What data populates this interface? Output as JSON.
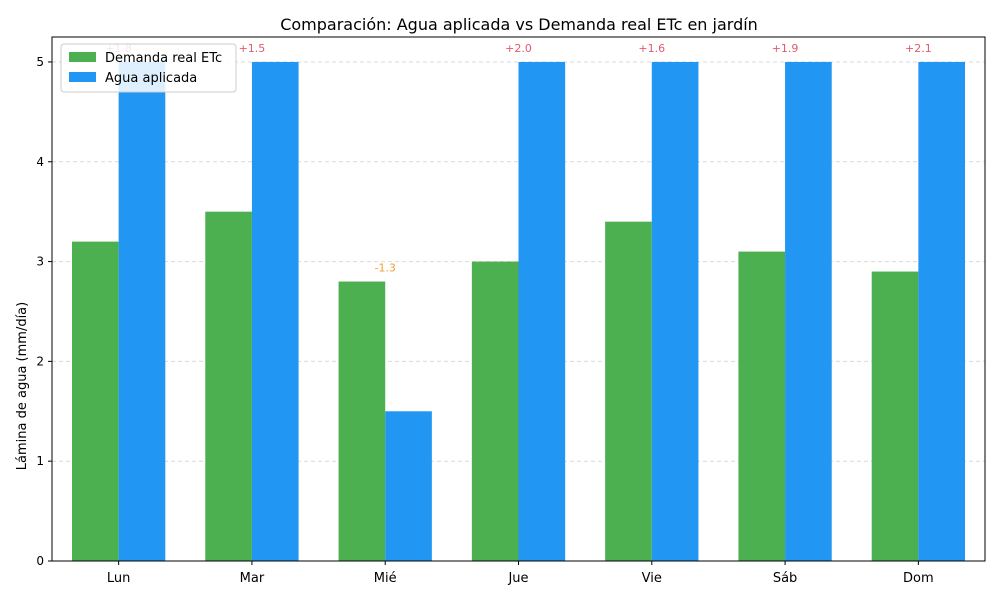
{
  "chart_data": {
    "type": "bar",
    "title": "Comparación: Agua aplicada vs Demanda real ETc en jardín",
    "xlabel": "",
    "ylabel": "Lámina de agua (mm/día)",
    "categories": [
      "Lun",
      "Mar",
      "Mié",
      "Jue",
      "Vie",
      "Sáb",
      "Dom"
    ],
    "series": [
      {
        "name": "Demanda real ETc",
        "color": "#4caf50",
        "values": [
          3.2,
          3.5,
          2.8,
          3.0,
          3.4,
          3.1,
          2.9
        ]
      },
      {
        "name": "Agua aplicada",
        "color": "#2196f3",
        "values": [
          5.0,
          5.0,
          1.5,
          5.0,
          5.0,
          5.0,
          5.0
        ]
      }
    ],
    "annotations": [
      {
        "category": "Lun",
        "text": "+1.8",
        "y": 5.0,
        "color": "#e05a6e"
      },
      {
        "category": "Mar",
        "text": "+1.5",
        "y": 5.0,
        "color": "#e05a6e"
      },
      {
        "category": "Mié",
        "text": "-1.3",
        "y": 2.8,
        "color": "#f0a030"
      },
      {
        "category": "Jue",
        "text": "+2.0",
        "y": 5.0,
        "color": "#e05a6e"
      },
      {
        "category": "Vie",
        "text": "+1.6",
        "y": 5.0,
        "color": "#e05a6e"
      },
      {
        "category": "Sáb",
        "text": "+1.9",
        "y": 5.0,
        "color": "#e05a6e"
      },
      {
        "category": "Dom",
        "text": "+2.1",
        "y": 5.0,
        "color": "#e05a6e"
      }
    ],
    "yticks": [
      0,
      1,
      2,
      3,
      4,
      5
    ],
    "ylim": [
      0,
      5.25
    ],
    "grid": "y-dashed",
    "legend": "top-left"
  }
}
